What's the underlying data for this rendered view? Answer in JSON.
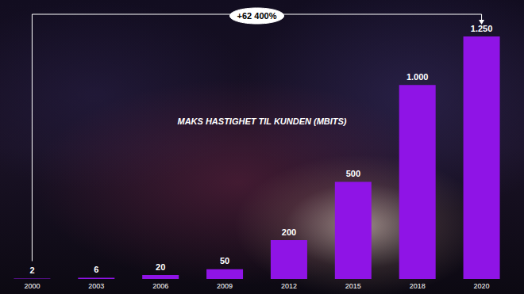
{
  "chart_data": {
    "type": "bar",
    "title": "MAKS HASTIGHET TIL KUNDEN (MBITS)",
    "categories": [
      "2000",
      "2003",
      "2006",
      "2009",
      "2012",
      "2015",
      "2018",
      "2020"
    ],
    "values": [
      2,
      6,
      20,
      50,
      200,
      500,
      1000,
      1250
    ],
    "value_labels": [
      "2",
      "6",
      "20",
      "50",
      "200",
      "500",
      "1.000",
      "1.250"
    ],
    "color": "#8f14e6",
    "ylim": [
      0,
      1250
    ],
    "grid": false,
    "data_labels": true,
    "tick_labels": "x",
    "annotation": "+62 400%"
  }
}
